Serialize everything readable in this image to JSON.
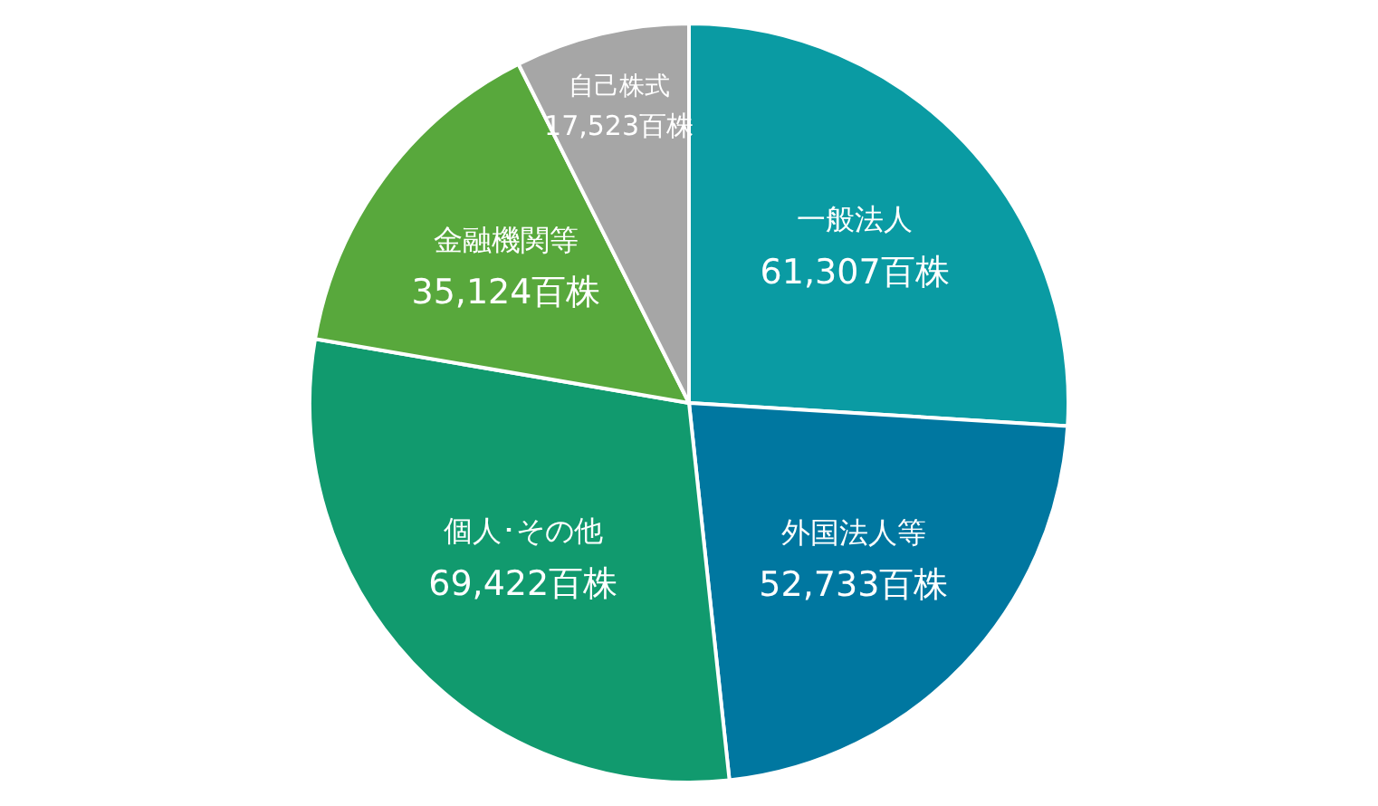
{
  "chart_data": {
    "type": "pie",
    "categories": [
      "一般法人",
      "外国法人等",
      "個人･その他",
      "金融機関等",
      "自己株式"
    ],
    "values": [
      61307,
      52733,
      69422,
      35124,
      17523
    ],
    "colors": [
      "#0a9ba3",
      "#0077a0",
      "#119a6e",
      "#58a83c",
      "#a6a6a6"
    ],
    "value_labels": [
      "61,307百株",
      "52,733百株",
      "69,422百株",
      "35,124百株",
      "17,523百株"
    ],
    "legend": false
  }
}
